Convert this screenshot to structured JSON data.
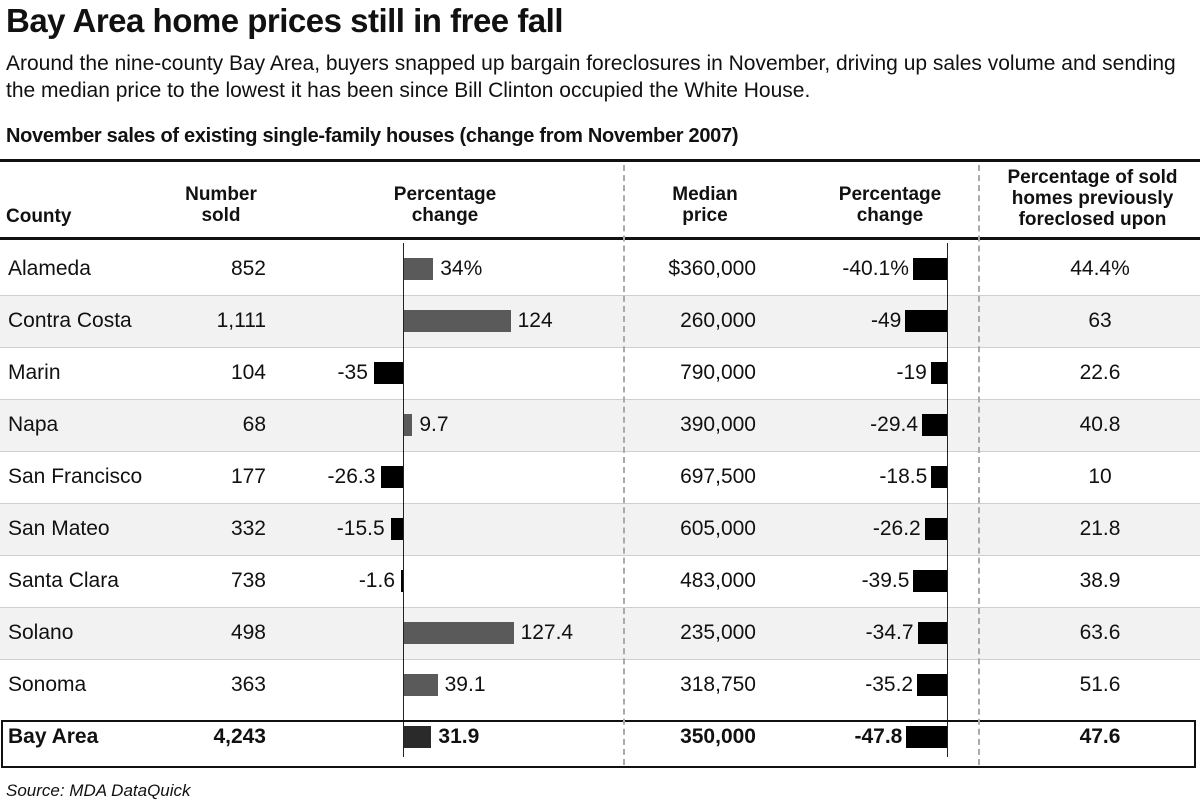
{
  "title": "Bay Area home prices still in free fall",
  "intro": "Around the nine-county Bay Area, buyers snapped up bargain foreclosures in November, driving up sales volume and sending the median price to the lowest it has been since Bill Clinton occupied the White House.",
  "subtitle": "November sales of existing single-family houses (change from November 2007)",
  "headers": {
    "county": "County",
    "number_sold": "Number sold",
    "pct_change_sales": "Percentage change",
    "median_price": "Median price",
    "pct_change_price": "Percentage change",
    "foreclosed": "Percentage of sold homes previously foreclosed upon"
  },
  "source": "Source: MDA DataQuick",
  "colors": {
    "sales_bar": "#5a5a5a",
    "price_bar": "#000000",
    "band": "#f2f2f2"
  },
  "chart_data": {
    "type": "table",
    "columns": [
      "County",
      "Number sold",
      "Percentage change",
      "Median price",
      "Percentage change",
      "Percentage of sold homes previously foreclosed upon"
    ],
    "rows": [
      {
        "county": "Alameda",
        "number_sold": "852",
        "sales_change": 34,
        "sales_change_label": "34%",
        "median_price": "$360,000",
        "price_change": -40.1,
        "price_change_label": "-40.1%",
        "foreclosed": "44.4%"
      },
      {
        "county": "Contra Costa",
        "number_sold": "1,111",
        "sales_change": 124,
        "sales_change_label": "124",
        "median_price": "260,000",
        "price_change": -49,
        "price_change_label": "-49",
        "foreclosed": "63"
      },
      {
        "county": "Marin",
        "number_sold": "104",
        "sales_change": -35,
        "sales_change_label": "-35",
        "median_price": "790,000",
        "price_change": -19,
        "price_change_label": "-19",
        "foreclosed": "22.6"
      },
      {
        "county": "Napa",
        "number_sold": "68",
        "sales_change": 9.7,
        "sales_change_label": "9.7",
        "median_price": "390,000",
        "price_change": -29.4,
        "price_change_label": "-29.4",
        "foreclosed": "40.8"
      },
      {
        "county": "San Francisco",
        "number_sold": "177",
        "sales_change": -26.3,
        "sales_change_label": "-26.3",
        "median_price": "697,500",
        "price_change": -18.5,
        "price_change_label": "-18.5",
        "foreclosed": "10"
      },
      {
        "county": "San Mateo",
        "number_sold": "332",
        "sales_change": -15.5,
        "sales_change_label": "-15.5",
        "median_price": "605,000",
        "price_change": -26.2,
        "price_change_label": "-26.2",
        "foreclosed": "21.8"
      },
      {
        "county": "Santa Clara",
        "number_sold": "738",
        "sales_change": -1.6,
        "sales_change_label": "-1.6",
        "median_price": "483,000",
        "price_change": -39.5,
        "price_change_label": "-39.5",
        "foreclosed": "38.9"
      },
      {
        "county": "Solano",
        "number_sold": "498",
        "sales_change": 127.4,
        "sales_change_label": "127.4",
        "median_price": "235,000",
        "price_change": -34.7,
        "price_change_label": "-34.7",
        "foreclosed": "63.6"
      },
      {
        "county": "Sonoma",
        "number_sold": "363",
        "sales_change": 39.1,
        "sales_change_label": "39.1",
        "median_price": "318,750",
        "price_change": -35.2,
        "price_change_label": "-35.2",
        "foreclosed": "51.6"
      }
    ],
    "total": {
      "county": "Bay Area",
      "number_sold": "4,243",
      "sales_change": 31.9,
      "sales_change_label": "31.9",
      "median_price": "350,000",
      "price_change": -47.8,
      "price_change_label": "-47.8",
      "foreclosed": "47.6"
    }
  }
}
